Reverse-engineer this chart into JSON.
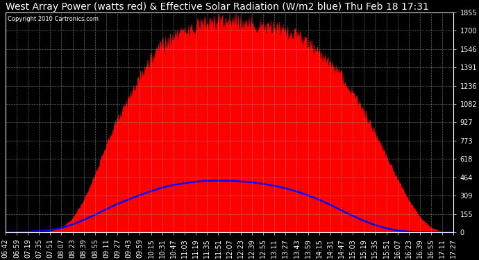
{
  "title": "West Array Power (watts red) & Effective Solar Radiation (W/m2 blue) Thu Feb 18 17:31",
  "copyright": "Copyright 2010 Cartronics.com",
  "background_color": "#000000",
  "plot_bg_color": "#000000",
  "grid_color": "#888888",
  "yticks": [
    0.0,
    154.6,
    309.1,
    463.7,
    618.2,
    772.8,
    927.4,
    1081.9,
    1236.5,
    1391.0,
    1545.6,
    1700.2,
    1854.7
  ],
  "ymax": 1854.7,
  "xtick_labels": [
    "06:42",
    "06:59",
    "07:19",
    "07:35",
    "07:51",
    "08:07",
    "08:23",
    "08:39",
    "08:55",
    "09:11",
    "09:27",
    "09:43",
    "09:59",
    "10:15",
    "10:31",
    "10:47",
    "11:03",
    "11:19",
    "11:35",
    "11:51",
    "12:07",
    "12:23",
    "12:39",
    "12:55",
    "13:11",
    "13:27",
    "13:43",
    "13:59",
    "14:15",
    "14:31",
    "14:47",
    "15:03",
    "15:19",
    "15:35",
    "15:51",
    "16:07",
    "16:23",
    "16:39",
    "16:55",
    "17:11",
    "17:27"
  ],
  "red_base": [
    0,
    0,
    0,
    0,
    10,
    40,
    120,
    280,
    500,
    750,
    980,
    1150,
    1350,
    1500,
    1620,
    1700,
    1750,
    1790,
    1810,
    1820,
    1830,
    1820,
    1810,
    1790,
    1770,
    1740,
    1700,
    1640,
    1560,
    1460,
    1340,
    1200,
    1040,
    860,
    660,
    460,
    280,
    130,
    40,
    5,
    0
  ],
  "blue_data": [
    2,
    3,
    5,
    10,
    18,
    35,
    65,
    105,
    148,
    195,
    240,
    278,
    315,
    348,
    378,
    400,
    415,
    428,
    435,
    437,
    435,
    430,
    422,
    410,
    393,
    372,
    345,
    313,
    275,
    232,
    185,
    138,
    96,
    60,
    33,
    14,
    5,
    2,
    1,
    1,
    0
  ],
  "red_color": "#ff0000",
  "blue_color": "#0000ff",
  "text_color": "#ffffff",
  "tick_color": "#ffffff",
  "title_fontsize": 10,
  "axis_fontsize": 7,
  "noise_seed": 12345,
  "noise_amplitude": 120
}
